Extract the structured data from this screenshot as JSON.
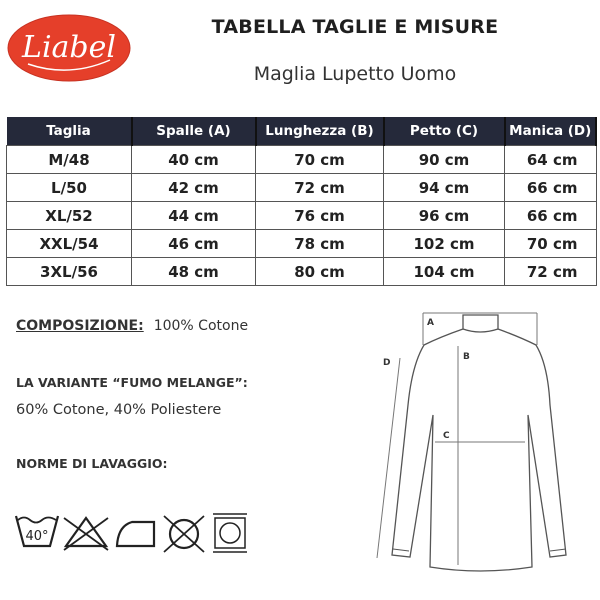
{
  "brand": {
    "logo_text": "Liabel",
    "color": "#e53f2a"
  },
  "header": {
    "title": "TABELLA TAGLIE E MISURE",
    "subtitle": "Maglia Lupetto Uomo"
  },
  "size_table": {
    "columns": [
      "Taglia",
      "Spalle (A)",
      "Lunghezza (B)",
      "Petto (C)",
      "Manica (D)"
    ],
    "rows": [
      [
        "M/48",
        "40 cm",
        "70 cm",
        "90 cm",
        "64 cm"
      ],
      [
        "L/50",
        "42 cm",
        "72 cm",
        "94 cm",
        "66 cm"
      ],
      [
        "XL/52",
        "44 cm",
        "76 cm",
        "96 cm",
        "66 cm"
      ],
      [
        "XXL/54",
        "46 cm",
        "78 cm",
        "102 cm",
        "70 cm"
      ],
      [
        "3XL/56",
        "48 cm",
        "80 cm",
        "104 cm",
        "72 cm"
      ]
    ],
    "header_color": "#25293a"
  },
  "composition": {
    "label": "COMPOSIZIONE:",
    "value": "100% Cotone"
  },
  "variant": {
    "label": "LA VARIANTE “FUMO MELANGE”:",
    "value": "60% Cotone, 40% Poliestere"
  },
  "washing": {
    "label": "NORME DI LAVAGGIO:",
    "wash_temp": "40°",
    "icons": [
      "wash-40-icon",
      "no-bleach-icon",
      "iron-icon",
      "no-tumble-dry-icon",
      "dry-clean-icon"
    ]
  },
  "diagram": {
    "labels": {
      "a": "A",
      "b": "B",
      "c": "C",
      "d": "D"
    }
  }
}
